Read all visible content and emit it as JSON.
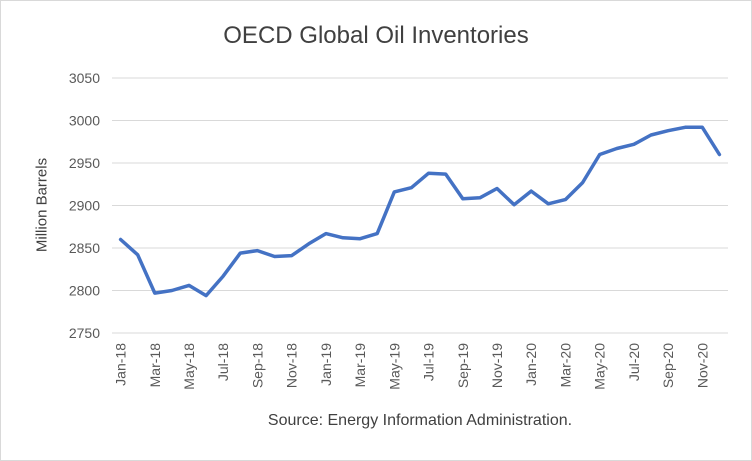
{
  "chart_data": {
    "type": "line",
    "title": "OECD Global Oil Inventories",
    "ylabel": "Million Barrels",
    "xlabel": "",
    "source": "Source: Energy Information Administration.",
    "ylim": [
      2750,
      3050
    ],
    "yticks": [
      2750,
      2800,
      2850,
      2900,
      2950,
      3000,
      3050
    ],
    "grid": "horizontal",
    "legend": "none",
    "line_color": "#4472c4",
    "x": [
      "Jan-18",
      "Feb-18",
      "Mar-18",
      "Apr-18",
      "May-18",
      "Jun-18",
      "Jul-18",
      "Aug-18",
      "Sep-18",
      "Oct-18",
      "Nov-18",
      "Dec-18",
      "Jan-19",
      "Feb-19",
      "Mar-19",
      "Apr-19",
      "May-19",
      "Jun-19",
      "Jul-19",
      "Aug-19",
      "Sep-19",
      "Oct-19",
      "Nov-19",
      "Dec-19",
      "Jan-20",
      "Feb-20",
      "Mar-20",
      "Apr-20",
      "May-20",
      "Jun-20",
      "Jul-20",
      "Aug-20",
      "Sep-20",
      "Oct-20",
      "Nov-20",
      "Dec-20"
    ],
    "xticks": [
      "Jan-18",
      "Mar-18",
      "May-18",
      "Jul-18",
      "Sep-18",
      "Nov-18",
      "Jan-19",
      "Mar-19",
      "May-19",
      "Jul-19",
      "Sep-19",
      "Nov-19",
      "Jan-20",
      "Mar-20",
      "May-20",
      "Jul-20",
      "Sep-20",
      "Nov-20"
    ],
    "series": [
      {
        "values": [
          2860,
          2842,
          2797,
          2800,
          2806,
          2794,
          2817,
          2844,
          2847,
          2840,
          2841,
          2855,
          2867,
          2862,
          2861,
          2867,
          2916,
          2921,
          2938,
          2937,
          2908,
          2909,
          2920,
          2901,
          2917,
          2902,
          2907,
          2927,
          2960,
          2967,
          2972,
          2983,
          2988,
          2992,
          2992,
          2960
        ]
      }
    ]
  }
}
